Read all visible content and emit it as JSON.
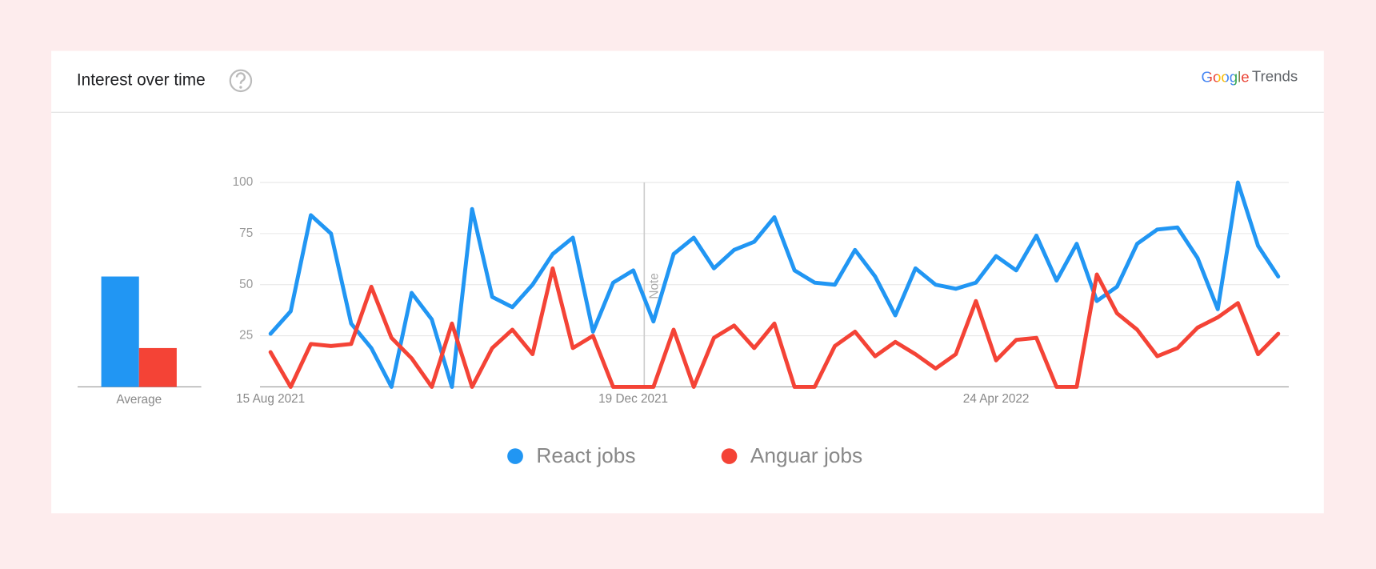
{
  "header": {
    "title": "Interest over time",
    "logo": "Google",
    "product": "Trends"
  },
  "chart_data": [
    {
      "type": "bar",
      "categories": [
        "Average"
      ],
      "series": [
        {
          "color": "#2196f3",
          "values": [
            54
          ]
        },
        {
          "color": "#f44336",
          "values": [
            19
          ]
        }
      ],
      "ylim": [
        0,
        100
      ]
    },
    {
      "type": "line",
      "x": [
        "15 Aug 2021",
        null,
        null,
        null,
        null,
        null,
        null,
        null,
        null,
        null,
        null,
        null,
        null,
        null,
        null,
        null,
        null,
        null,
        "19 Dec 2021",
        null,
        null,
        null,
        null,
        null,
        null,
        null,
        null,
        null,
        null,
        null,
        null,
        null,
        null,
        null,
        null,
        null,
        "24 Apr 2022",
        null,
        null,
        null,
        null,
        null,
        null,
        null,
        null,
        null,
        null,
        null,
        null,
        null,
        null
      ],
      "series": [
        {
          "name": "React jobs",
          "color": "#2196f3",
          "values": [
            26,
            37,
            84,
            75,
            31,
            19,
            0,
            46,
            33,
            0,
            87,
            44,
            39,
            50,
            65,
            73,
            27,
            51,
            57,
            32,
            65,
            73,
            58,
            67,
            71,
            83,
            57,
            51,
            50,
            67,
            54,
            35,
            58,
            50,
            48,
            51,
            64,
            57,
            74,
            52,
            70,
            42,
            49,
            70,
            77,
            78,
            63,
            38,
            100,
            69,
            54
          ]
        },
        {
          "name": "Anguar jobs",
          "color": "#f44336",
          "values": [
            17,
            0,
            21,
            20,
            21,
            49,
            24,
            14,
            0,
            31,
            0,
            19,
            28,
            16,
            58,
            19,
            25,
            0,
            0,
            0,
            28,
            0,
            24,
            30,
            19,
            31,
            0,
            0,
            20,
            27,
            15,
            22,
            16,
            9,
            16,
            42,
            13,
            23,
            24,
            0,
            0,
            55,
            36,
            28,
            15,
            19,
            29,
            34,
            41,
            16,
            26
          ]
        }
      ],
      "ylim": [
        0,
        100
      ],
      "yticks": [
        25,
        50,
        75,
        100
      ],
      "grid": true,
      "annotations": [
        {
          "x_index": 19,
          "text": "Note"
        }
      ]
    }
  ]
}
